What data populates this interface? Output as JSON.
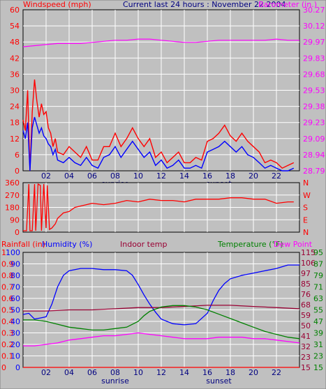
{
  "header": {
    "windspeed_label": "Windspeed (mph)",
    "title": "Current last 24 hours : November 22 2004",
    "barometer_label": "Barometer (in.)"
  },
  "colors": {
    "background": "#c0c0c0",
    "grid": "#ffffff",
    "wind_speed": "#ff0000",
    "wind_avg": "#0000ff",
    "barometer": "#ff00ff",
    "direction": "#ff0000",
    "humidity": "#0000ff",
    "indoor_temp": "#990033",
    "temperature": "#008000",
    "dewpoint": "#ff00ff",
    "rainfall": "#ff0000"
  },
  "chart_data": [
    {
      "type": "line",
      "id": "wind",
      "x_ticks": [
        "02",
        "04",
        "06",
        "08",
        "10",
        "12",
        "14",
        "16",
        "18",
        "20",
        "22"
      ],
      "x_markers": [
        {
          "label": "sunrise",
          "x": 8
        },
        {
          "label": "sunset",
          "x": 17
        }
      ],
      "left_axis": {
        "label": "Windspeed (mph)",
        "ticks": [
          "0",
          "6",
          "12",
          "18",
          "24",
          "30",
          "36",
          "42",
          "48",
          "54",
          "60"
        ],
        "ylim": [
          0,
          60
        ]
      },
      "right_axis": {
        "label": "Barometer (in.)",
        "ticks": [
          "28.79",
          "28.94",
          "29.09",
          "29.23",
          "29.38",
          "29.53",
          "29.68",
          "29.83",
          "29.97",
          "30.12",
          "30.27"
        ],
        "ylim": [
          28.79,
          30.27
        ]
      },
      "series": [
        {
          "key": "gust",
          "axis": "left",
          "color": "#ff0000",
          "x": [
            0,
            0.2,
            0.4,
            0.6,
            0.8,
            1.0,
            1.2,
            1.4,
            1.6,
            1.8,
            2.0,
            2.2,
            2.4,
            2.6,
            2.8,
            3.0,
            3.5,
            4.0,
            4.5,
            5.0,
            5.5,
            6.0,
            6.5,
            7.0,
            7.5,
            8.0,
            8.5,
            9.0,
            9.5,
            10.0,
            10.5,
            11.0,
            11.5,
            12.0,
            12.5,
            13.0,
            13.5,
            14.0,
            14.5,
            15.0,
            15.5,
            16.0,
            16.5,
            17.0,
            17.5,
            18.0,
            18.5,
            19.0,
            19.5,
            20.0,
            20.5,
            21.0,
            21.5,
            22.0,
            22.5,
            23.0,
            23.5
          ],
          "y": [
            19,
            15,
            30,
            0,
            22,
            34,
            26,
            20,
            25,
            21,
            22,
            16,
            14,
            9,
            12,
            7,
            6,
            9,
            7,
            5,
            9,
            4,
            4,
            9,
            9,
            14,
            9,
            12,
            16,
            12,
            9,
            12,
            5,
            7,
            3,
            5,
            7,
            3,
            3,
            5,
            4,
            11,
            12,
            14,
            17,
            13,
            11,
            14,
            11,
            9,
            7,
            3,
            4,
            3,
            1,
            2,
            3
          ]
        },
        {
          "key": "average",
          "axis": "left",
          "color": "#0000ff",
          "x": [
            0,
            0.2,
            0.4,
            0.6,
            0.8,
            1.0,
            1.2,
            1.4,
            1.6,
            1.8,
            2.0,
            2.2,
            2.4,
            2.6,
            2.8,
            3.0,
            3.5,
            4.0,
            4.5,
            5.0,
            5.5,
            6.0,
            6.5,
            7.0,
            7.5,
            8.0,
            8.5,
            9.0,
            9.5,
            10.0,
            10.5,
            11.0,
            11.5,
            12.0,
            12.5,
            13.0,
            13.5,
            14.0,
            14.5,
            15.0,
            15.5,
            16.0,
            16.5,
            17.0,
            17.5,
            18.0,
            18.5,
            19.0,
            19.5,
            20.0,
            20.5,
            21.0,
            21.5,
            22.0,
            22.5,
            23.0,
            23.5
          ],
          "y": [
            15,
            12,
            18,
            0,
            16,
            20,
            17,
            14,
            16,
            13,
            12,
            10,
            9,
            6,
            8,
            4,
            3,
            5,
            3,
            2,
            5,
            2,
            1,
            5,
            6,
            9,
            5,
            8,
            11,
            8,
            5,
            7,
            2,
            4,
            1,
            2,
            4,
            1,
            1,
            2,
            1,
            7,
            8,
            9,
            11,
            9,
            7,
            9,
            6,
            5,
            3,
            1,
            2,
            1,
            0,
            0,
            1
          ]
        },
        {
          "key": "barometer",
          "axis": "right",
          "color": "#ff00ff",
          "x": [
            0,
            1,
            2,
            3,
            4,
            5,
            6,
            7,
            8,
            9,
            10,
            11,
            12,
            13,
            14,
            15,
            16,
            17,
            18,
            19,
            20,
            21,
            22,
            23,
            24
          ],
          "y": [
            29.93,
            29.94,
            29.95,
            29.96,
            29.96,
            29.96,
            29.97,
            29.98,
            29.99,
            29.99,
            30.0,
            30.0,
            29.99,
            29.98,
            29.97,
            29.97,
            29.98,
            29.99,
            29.99,
            29.99,
            29.99,
            29.99,
            30.0,
            29.99,
            29.99
          ]
        }
      ]
    },
    {
      "type": "line",
      "id": "direction",
      "left_axis": {
        "ticks": [
          "0",
          "90",
          "180",
          "270",
          "360"
        ],
        "ylim": [
          0,
          360
        ]
      },
      "right_axis": {
        "ticks": [
          "N",
          "E",
          "S",
          "W",
          "N"
        ]
      },
      "series": [
        {
          "key": "wind_direction",
          "color": "#ff0000",
          "x": [
            0,
            0.3,
            0.5,
            0.6,
            0.8,
            1.0,
            1.1,
            1.3,
            1.5,
            1.6,
            1.8,
            2.0,
            2.1,
            2.3,
            2.5,
            2.8,
            3.0,
            3.5,
            4.0,
            4.5,
            5.0,
            5.5,
            6.0,
            7.0,
            8.0,
            9.0,
            10.0,
            11.0,
            12.0,
            13.0,
            14.0,
            15.0,
            16.0,
            17.0,
            18.0,
            19.0,
            20.0,
            21.0,
            22.0,
            23.0,
            23.5
          ],
          "y": [
            10,
            10,
            350,
            10,
            10,
            350,
            10,
            350,
            340,
            10,
            350,
            30,
            340,
            20,
            30,
            60,
            100,
            140,
            150,
            180,
            190,
            200,
            210,
            200,
            210,
            230,
            220,
            240,
            230,
            230,
            220,
            240,
            240,
            240,
            250,
            250,
            240,
            240,
            210,
            220,
            220
          ]
        }
      ]
    },
    {
      "type": "line",
      "id": "climate",
      "header_labels": {
        "rainfall": "Rainfall (in)",
        "humidity": "Humidity (%)",
        "indoor": "Indoor temp",
        "temperature": "Temperature (°F)",
        "dewpoint": "Dew Point"
      },
      "rain_ticks": [
        "0",
        "0.1",
        "0.2",
        "0.3",
        "0.4",
        "0.5",
        "0.6",
        "0.7",
        "0.8",
        "0.9",
        "1"
      ],
      "humidity_ticks": [
        "0",
        "10",
        "20",
        "30",
        "40",
        "50",
        "60",
        "70",
        "80",
        "90",
        "100"
      ],
      "indoor_ticks": [
        "15",
        "23",
        "32",
        "41",
        "50",
        "59",
        "68",
        "76",
        "85",
        "97",
        "106",
        "115"
      ],
      "temp_ticks": [
        "15",
        "23",
        "31",
        "39",
        "47",
        "55",
        "63",
        "71",
        "79",
        "87",
        "95"
      ],
      "x_ticks": [
        "02",
        "04",
        "06",
        "08",
        "10",
        "12",
        "14",
        "16",
        "18",
        "20",
        "22"
      ],
      "x_markers": [
        {
          "label": "sunrise",
          "x": 8
        },
        {
          "label": "sunset",
          "x": 17
        }
      ],
      "series": [
        {
          "key": "humidity",
          "color": "#0000ff",
          "ylim": [
            0,
            100
          ],
          "x": [
            0,
            0.5,
            1,
            1.5,
            2,
            2.5,
            3,
            3.5,
            4,
            5,
            6,
            7,
            8,
            9,
            9.5,
            10,
            10.5,
            11,
            11.5,
            12,
            13,
            14,
            15,
            16,
            16.5,
            17,
            17.5,
            18,
            19,
            20,
            21,
            22,
            23,
            24
          ],
          "y": [
            46,
            47,
            42,
            43,
            44,
            55,
            70,
            80,
            84,
            86,
            86,
            85,
            85,
            84,
            80,
            72,
            63,
            55,
            48,
            42,
            38,
            37,
            38,
            47,
            58,
            67,
            73,
            77,
            80,
            82,
            84,
            86,
            89,
            89
          ]
        },
        {
          "key": "indoor_temp",
          "color": "#990033",
          "ylim": [
            15,
            115
          ],
          "x": [
            0,
            2,
            4,
            6,
            8,
            10,
            12,
            14,
            16,
            18,
            20,
            22,
            24
          ],
          "y": [
            64,
            64,
            65,
            65,
            66,
            67,
            67,
            68,
            69,
            69,
            68,
            67,
            66
          ]
        },
        {
          "key": "temperature",
          "color": "#008000",
          "ylim": [
            15,
            95
          ],
          "x": [
            0,
            1,
            2,
            3,
            4,
            5,
            6,
            7,
            8,
            9,
            10,
            10.5,
            11,
            12,
            13,
            14,
            15,
            16,
            17,
            18,
            19,
            20,
            21,
            22,
            23,
            24
          ],
          "y": [
            48,
            48,
            47,
            45,
            43,
            42,
            41,
            41,
            42,
            43,
            47,
            51,
            54,
            57,
            58,
            58,
            57,
            55,
            52,
            49,
            46,
            43,
            40,
            38,
            36,
            35
          ]
        },
        {
          "key": "dewpoint",
          "color": "#ff00ff",
          "ylim": [
            15,
            95
          ],
          "x": [
            0,
            1,
            2,
            3,
            4,
            5,
            6,
            7,
            8,
            9,
            10,
            11,
            12,
            13,
            14,
            15,
            16,
            17,
            18,
            19,
            20,
            21,
            22,
            23,
            24
          ],
          "y": [
            30,
            30,
            31,
            32,
            34,
            35,
            36,
            37,
            37,
            38,
            39,
            38,
            37,
            36,
            35,
            35,
            35,
            36,
            36,
            36,
            35,
            35,
            34,
            33,
            32
          ]
        },
        {
          "key": "rainfall",
          "color": "#ff0000",
          "ylim": [
            0,
            1
          ],
          "x": [
            0,
            24
          ],
          "y": [
            0,
            0
          ]
        }
      ]
    }
  ]
}
